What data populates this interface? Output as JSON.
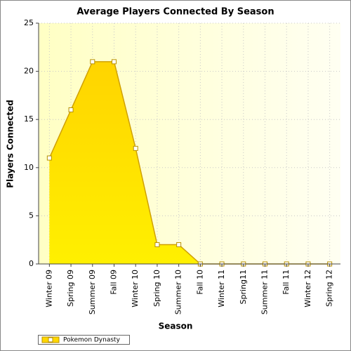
{
  "chart_data": {
    "type": "area",
    "title": "Average Players Connected By Season",
    "x_label": "Season",
    "y_label": "Players Connected",
    "categories": [
      "Winter 09",
      "Spring 09",
      "Summer 09",
      "Fall 09",
      "Winter 10",
      "Spring 10",
      "Summer 10",
      "Fall 10",
      "Winter 11",
      "Spring11",
      "Summer 11",
      "Fall 11",
      "Winter 12",
      "Spring 12"
    ],
    "series": [
      {
        "name": "Pokemon Dynasty",
        "color": "#ffd700",
        "values": [
          11,
          16,
          21,
          21,
          12,
          2,
          2,
          0,
          0,
          0,
          0,
          0,
          0,
          0
        ]
      }
    ],
    "ylim": [
      0,
      25
    ],
    "yticks": [
      0,
      5,
      10,
      15,
      20,
      25
    ],
    "grid": true,
    "legend": "bottom-left"
  }
}
